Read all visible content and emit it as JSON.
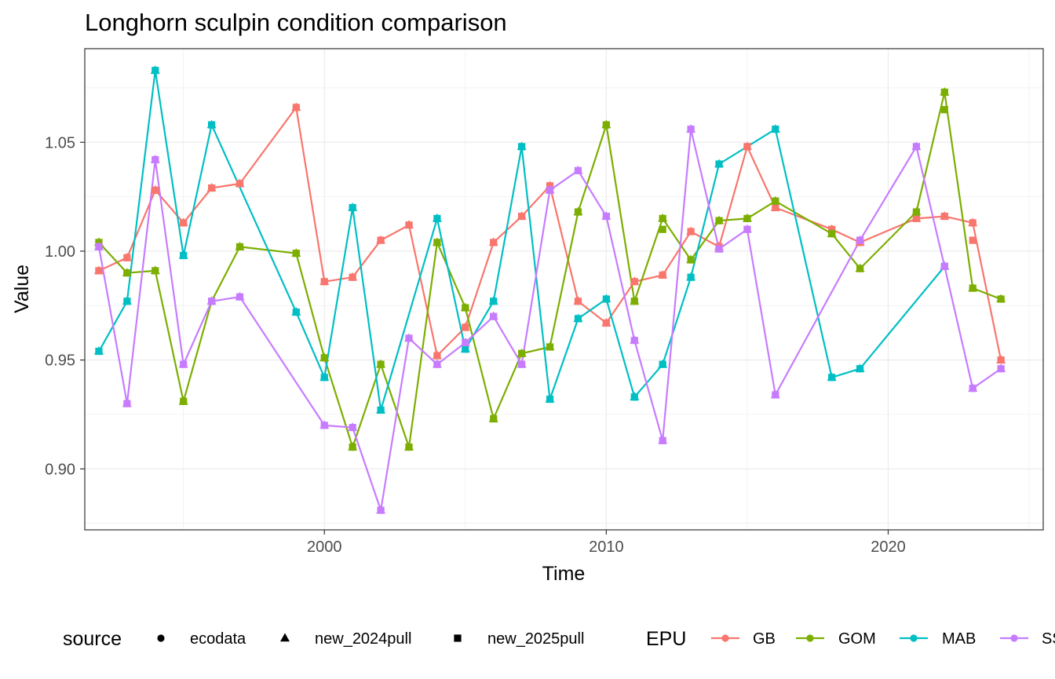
{
  "chart_data": {
    "type": "line",
    "title": "Longhorn sculpin condition comparison",
    "xlabel": "Time",
    "ylabel": "Value",
    "xlim": [
      1991.5,
      2025.5
    ],
    "ylim": [
      0.872,
      1.093
    ],
    "x_ticks": [
      2000,
      2010,
      2020
    ],
    "x_tick_labels": [
      "2000",
      "2010",
      "2020"
    ],
    "y_ticks": [
      0.9,
      0.95,
      1.0,
      1.05
    ],
    "y_tick_labels": [
      "0.90",
      "0.95",
      "1.00",
      "1.05"
    ],
    "grid": true,
    "legend_position": "bottom",
    "source_legend": {
      "title": "source",
      "items": [
        {
          "label": "ecodata",
          "shape": "circle"
        },
        {
          "label": "new_2024pull",
          "shape": "triangle"
        },
        {
          "label": "new_2025pull",
          "shape": "square"
        }
      ]
    },
    "epu_legend": {
      "title": "EPU",
      "items": [
        {
          "label": "GB",
          "color": "#F8766D"
        },
        {
          "label": "GOM",
          "color": "#7CAE00"
        },
        {
          "label": "MAB",
          "color": "#00BFC4"
        },
        {
          "label": "SS",
          "color": "#C77CFF"
        }
      ]
    },
    "series": [
      {
        "name": "GB",
        "color": "#F8766D",
        "x": [
          1992,
          1993,
          1994,
          1995,
          1996,
          1997,
          1999,
          2000,
          2001,
          2002,
          2003,
          2004,
          2005,
          2006,
          2007,
          2008,
          2009,
          2010,
          2011,
          2012,
          2013,
          2014,
          2015,
          2016,
          2018,
          2019,
          2021,
          2022,
          2023,
          2024
        ],
        "y": [
          0.991,
          0.997,
          1.028,
          1.013,
          1.029,
          1.031,
          1.066,
          0.986,
          0.988,
          1.005,
          1.012,
          0.952,
          0.965,
          1.004,
          1.016,
          1.03,
          0.977,
          0.967,
          0.986,
          0.989,
          1.009,
          1.002,
          1.048,
          1.02,
          1.01,
          1.004,
          1.015,
          1.016,
          1.013,
          0.95
        ],
        "y_2025": {
          "2023": 1.005
        }
      },
      {
        "name": "GOM",
        "color": "#7CAE00",
        "x": [
          1992,
          1993,
          1994,
          1995,
          1996,
          1997,
          1999,
          2000,
          2001,
          2002,
          2003,
          2004,
          2005,
          2006,
          2007,
          2008,
          2009,
          2010,
          2011,
          2012,
          2013,
          2014,
          2015,
          2016,
          2018,
          2019,
          2021,
          2022,
          2023,
          2024
        ],
        "y": [
          1.004,
          0.99,
          0.991,
          0.931,
          0.977,
          1.002,
          0.999,
          0.951,
          0.91,
          0.948,
          0.91,
          1.004,
          0.974,
          0.923,
          0.953,
          0.956,
          1.018,
          1.058,
          0.977,
          1.015,
          0.996,
          1.014,
          1.015,
          1.023,
          1.008,
          0.992,
          1.018,
          1.073,
          0.983,
          0.978
        ],
        "y_2025": {
          "2012": 1.01,
          "2022": 1.065
        }
      },
      {
        "name": "MAB",
        "color": "#00BFC4",
        "x": [
          1992,
          1993,
          1994,
          1995,
          1996,
          1999,
          2000,
          2001,
          2002,
          2004,
          2005,
          2006,
          2007,
          2008,
          2009,
          2010,
          2011,
          2012,
          2013,
          2014,
          2016,
          2018,
          2019,
          2022
        ],
        "y": [
          0.954,
          0.977,
          1.083,
          0.998,
          1.058,
          0.972,
          0.942,
          1.02,
          0.927,
          1.015,
          0.955,
          0.977,
          1.048,
          0.932,
          0.969,
          0.978,
          0.933,
          0.948,
          0.988,
          1.04,
          1.056,
          0.942,
          0.946,
          0.993
        ]
      },
      {
        "name": "SS",
        "color": "#C77CFF",
        "x": [
          1992,
          1993,
          1994,
          1995,
          1996,
          1997,
          2000,
          2001,
          2002,
          2003,
          2004,
          2005,
          2006,
          2007,
          2008,
          2009,
          2010,
          2011,
          2012,
          2013,
          2014,
          2015,
          2016,
          2019,
          2021,
          2022,
          2023,
          2024
        ],
        "y": [
          1.002,
          0.93,
          1.042,
          0.948,
          0.977,
          0.979,
          0.92,
          0.919,
          0.881,
          0.96,
          0.948,
          0.958,
          0.97,
          0.948,
          1.028,
          1.037,
          1.016,
          0.959,
          0.913,
          1.056,
          1.001,
          1.01,
          0.934,
          1.005,
          1.048,
          0.993,
          0.937,
          0.946
        ]
      }
    ]
  }
}
